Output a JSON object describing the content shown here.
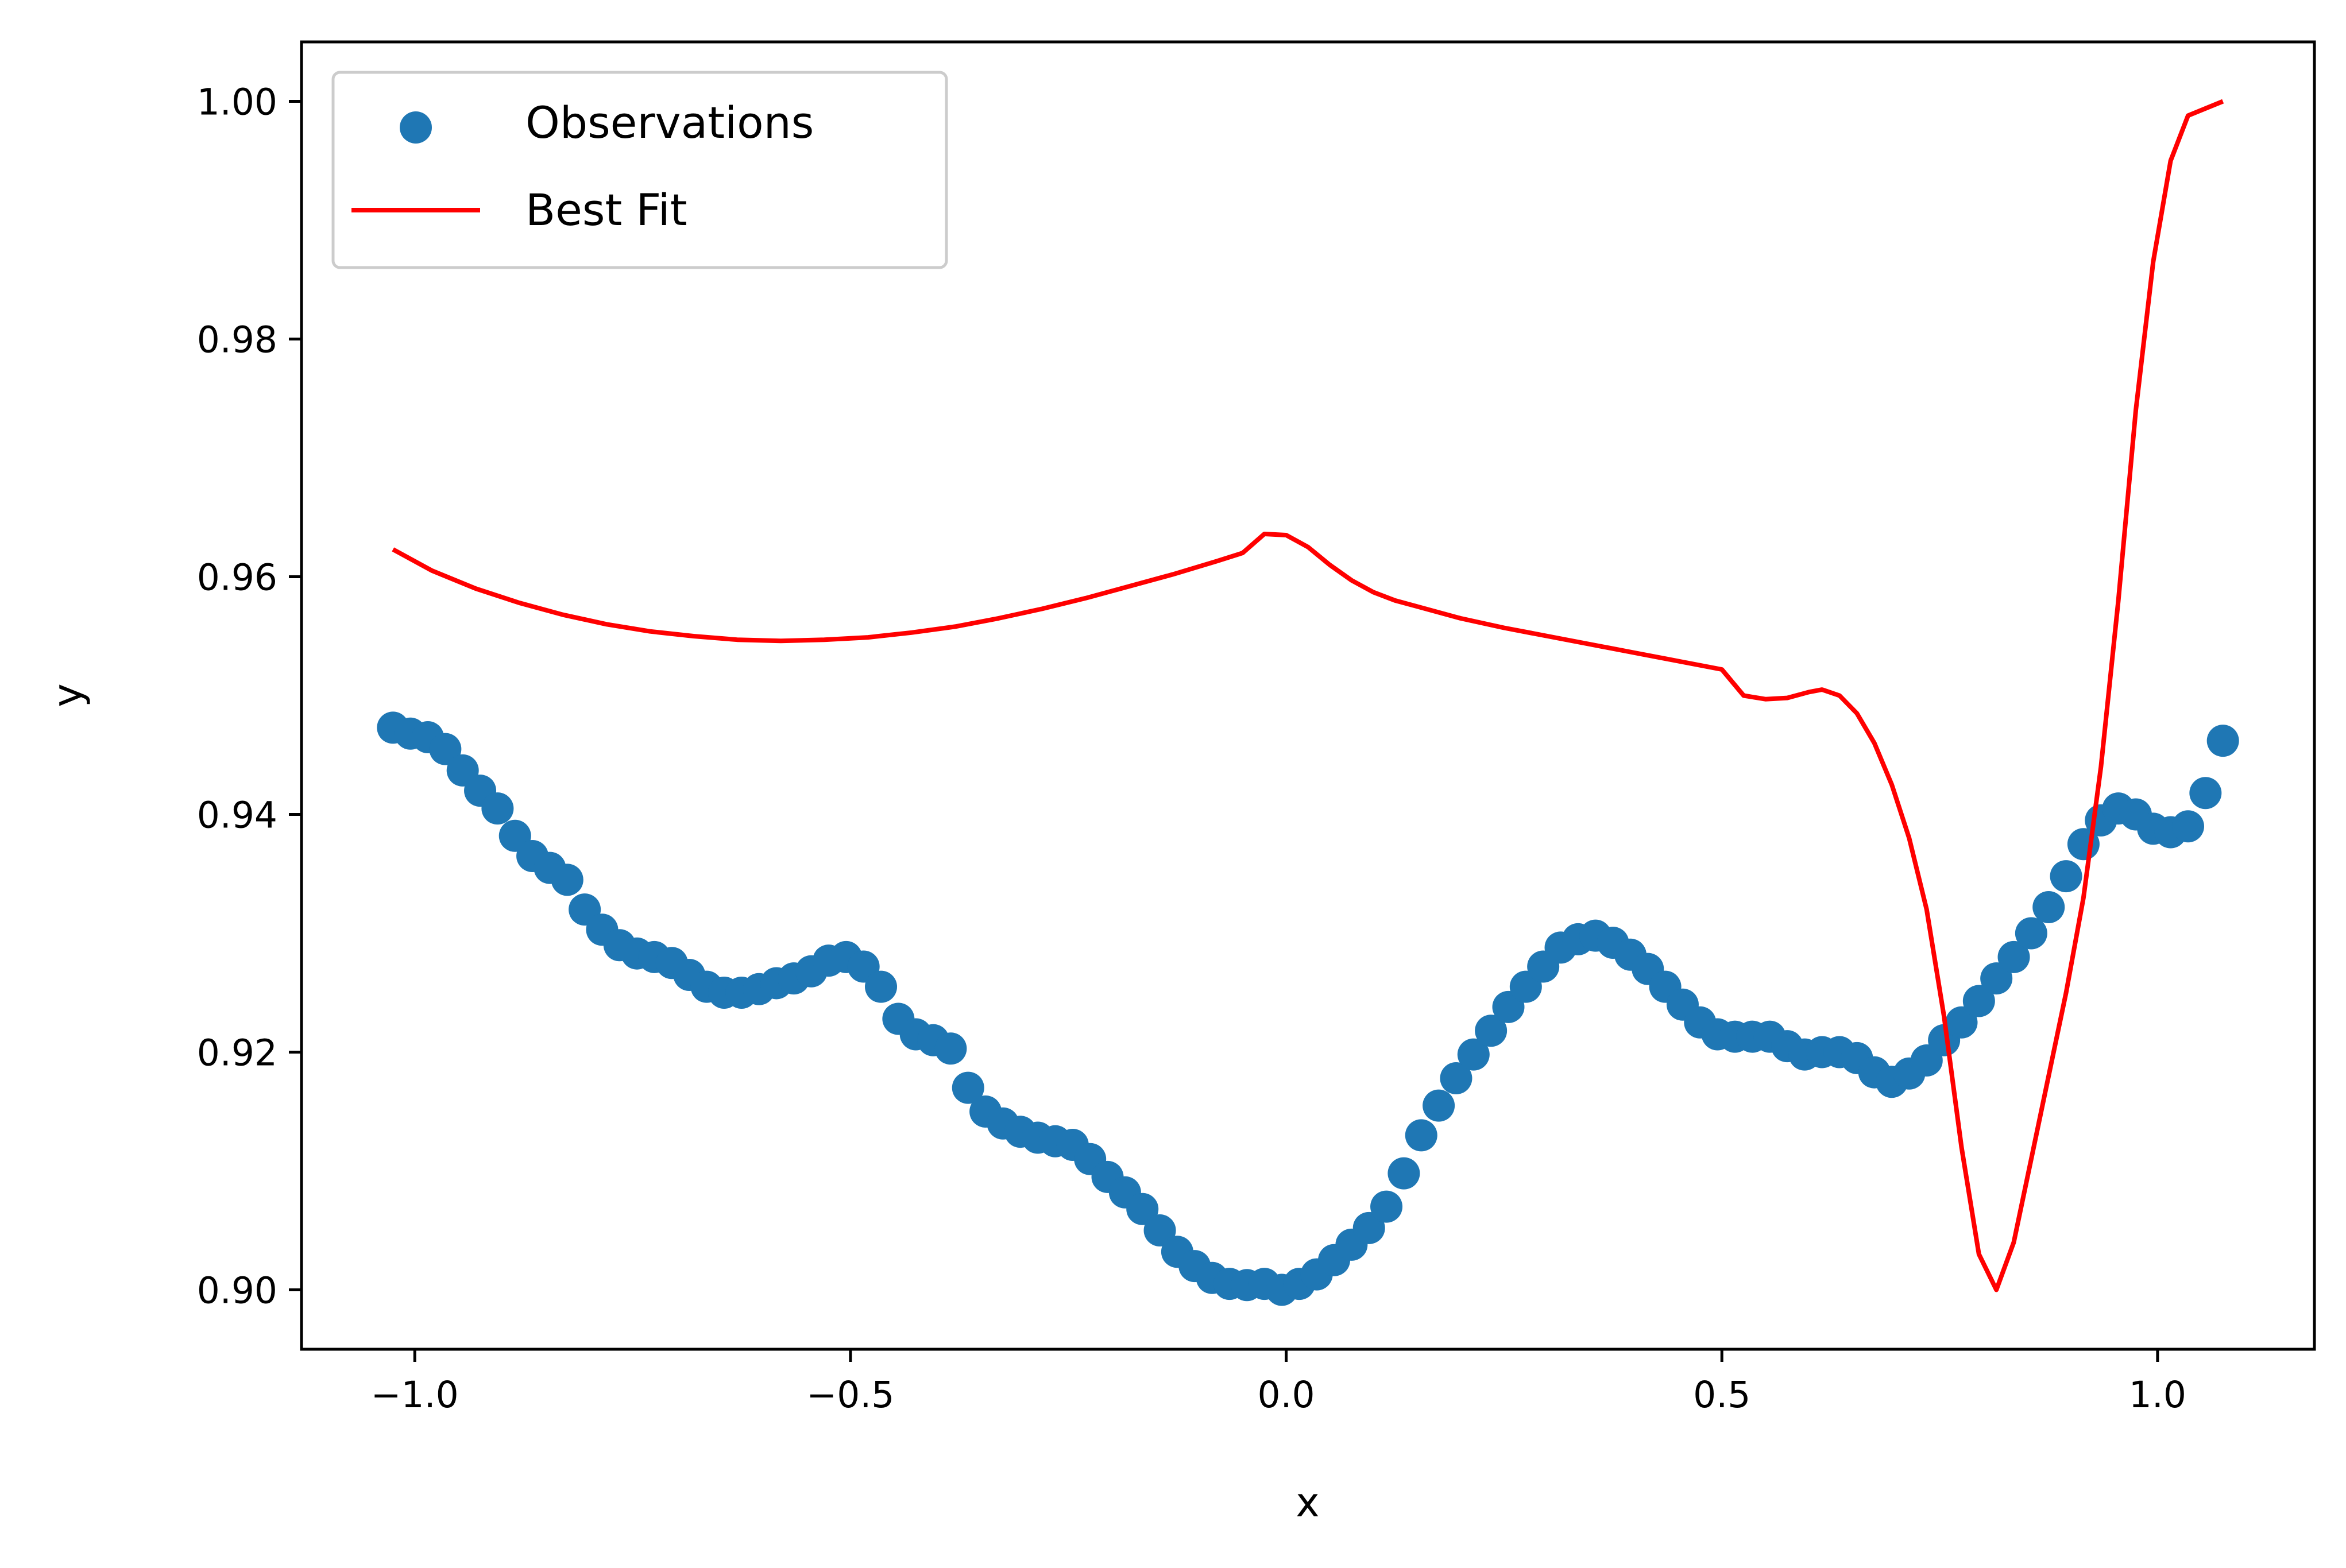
{
  "chart_data": {
    "type": "scatter",
    "title": "",
    "xlabel": "x",
    "ylabel": "y",
    "xlim": [
      -1.13,
      1.18
    ],
    "ylim": [
      0.895,
      1.005
    ],
    "xticks": [
      -1.0,
      -0.5,
      0.0,
      0.5,
      1.0
    ],
    "xtick_labels": [
      "−1.0",
      "−0.5",
      "0.0",
      "0.5",
      "1.0"
    ],
    "yticks": [
      0.9,
      0.92,
      0.94,
      0.96,
      0.98,
      1.0
    ],
    "ytick_labels": [
      "0.90",
      "0.92",
      "0.94",
      "0.96",
      "0.98",
      "1.00"
    ],
    "grid": false,
    "legend_position": "top-left",
    "series": [
      {
        "name": "Observations",
        "kind": "scatter",
        "color": "#1f77b4",
        "points": [
          [
            -1.025,
            0.9473
          ],
          [
            -1.005,
            0.9468
          ],
          [
            -0.985,
            0.9465
          ],
          [
            -0.965,
            0.9455
          ],
          [
            -0.945,
            0.9437
          ],
          [
            -0.925,
            0.942
          ],
          [
            -0.905,
            0.9405
          ],
          [
            -0.885,
            0.9382
          ],
          [
            -0.865,
            0.9365
          ],
          [
            -0.845,
            0.9355
          ],
          [
            -0.825,
            0.9345
          ],
          [
            -0.805,
            0.932
          ],
          [
            -0.785,
            0.9303
          ],
          [
            -0.765,
            0.929
          ],
          [
            -0.745,
            0.9283
          ],
          [
            -0.725,
            0.928
          ],
          [
            -0.705,
            0.9275
          ],
          [
            -0.685,
            0.9265
          ],
          [
            -0.665,
            0.9255
          ],
          [
            -0.645,
            0.925
          ],
          [
            -0.625,
            0.925
          ],
          [
            -0.605,
            0.9253
          ],
          [
            -0.585,
            0.9258
          ],
          [
            -0.565,
            0.9262
          ],
          [
            -0.545,
            0.9268
          ],
          [
            -0.525,
            0.9277
          ],
          [
            -0.505,
            0.928
          ],
          [
            -0.485,
            0.9272
          ],
          [
            -0.465,
            0.9255
          ],
          [
            -0.445,
            0.9228
          ],
          [
            -0.425,
            0.9215
          ],
          [
            -0.405,
            0.921
          ],
          [
            -0.385,
            0.9203
          ],
          [
            -0.365,
            0.917
          ],
          [
            -0.345,
            0.915
          ],
          [
            -0.325,
            0.914
          ],
          [
            -0.305,
            0.9133
          ],
          [
            -0.285,
            0.9128
          ],
          [
            -0.265,
            0.9125
          ],
          [
            -0.245,
            0.9122
          ],
          [
            -0.225,
            0.911
          ],
          [
            -0.205,
            0.9095
          ],
          [
            -0.185,
            0.9082
          ],
          [
            -0.165,
            0.9068
          ],
          [
            -0.145,
            0.905
          ],
          [
            -0.125,
            0.9032
          ],
          [
            -0.105,
            0.902
          ],
          [
            -0.085,
            0.901
          ],
          [
            -0.065,
            0.9005
          ],
          [
            -0.045,
            0.9004
          ],
          [
            -0.025,
            0.9005
          ],
          [
            -0.005,
            0.9
          ],
          [
            0.015,
            0.9005
          ],
          [
            0.035,
            0.9013
          ],
          [
            0.055,
            0.9025
          ],
          [
            0.075,
            0.9038
          ],
          [
            0.095,
            0.9052
          ],
          [
            0.115,
            0.907
          ],
          [
            0.135,
            0.9098
          ],
          [
            0.155,
            0.913
          ],
          [
            0.175,
            0.9155
          ],
          [
            0.195,
            0.9178
          ],
          [
            0.215,
            0.9198
          ],
          [
            0.235,
            0.9218
          ],
          [
            0.255,
            0.9238
          ],
          [
            0.275,
            0.9255
          ],
          [
            0.295,
            0.9272
          ],
          [
            0.315,
            0.9288
          ],
          [
            0.335,
            0.9295
          ],
          [
            0.355,
            0.9298
          ],
          [
            0.375,
            0.9292
          ],
          [
            0.395,
            0.9282
          ],
          [
            0.415,
            0.927
          ],
          [
            0.435,
            0.9255
          ],
          [
            0.455,
            0.924
          ],
          [
            0.475,
            0.9225
          ],
          [
            0.495,
            0.9215
          ],
          [
            0.515,
            0.9213
          ],
          [
            0.535,
            0.9213
          ],
          [
            0.555,
            0.9213
          ],
          [
            0.575,
            0.9205
          ],
          [
            0.595,
            0.9198
          ],
          [
            0.615,
            0.92
          ],
          [
            0.635,
            0.92
          ],
          [
            0.655,
            0.9195
          ],
          [
            0.675,
            0.9183
          ],
          [
            0.695,
            0.9175
          ],
          [
            0.715,
            0.9182
          ],
          [
            0.735,
            0.9193
          ],
          [
            0.755,
            0.921
          ],
          [
            0.775,
            0.9225
          ],
          [
            0.795,
            0.9243
          ],
          [
            0.815,
            0.9262
          ],
          [
            0.835,
            0.928
          ],
          [
            0.855,
            0.93
          ],
          [
            0.875,
            0.9322
          ],
          [
            0.895,
            0.9348
          ],
          [
            0.915,
            0.9375
          ],
          [
            0.935,
            0.9395
          ],
          [
            0.955,
            0.9405
          ],
          [
            0.975,
            0.94
          ],
          [
            0.995,
            0.9388
          ],
          [
            1.015,
            0.9385
          ],
          [
            1.035,
            0.939
          ],
          [
            1.055,
            0.9418
          ],
          [
            1.075,
            0.9462
          ]
        ]
      },
      {
        "name": "Best Fit",
        "kind": "line",
        "color": "#ff0000",
        "points": [
          [
            -1.025,
            0.9623
          ],
          [
            -0.98,
            0.9605
          ],
          [
            -0.93,
            0.959
          ],
          [
            -0.88,
            0.9578
          ],
          [
            -0.83,
            0.9568
          ],
          [
            -0.78,
            0.956
          ],
          [
            -0.73,
            0.9554
          ],
          [
            -0.68,
            0.955
          ],
          [
            -0.63,
            0.9547
          ],
          [
            -0.58,
            0.9546
          ],
          [
            -0.53,
            0.9547
          ],
          [
            -0.48,
            0.9549
          ],
          [
            -0.43,
            0.9553
          ],
          [
            -0.38,
            0.9558
          ],
          [
            -0.33,
            0.9565
          ],
          [
            -0.28,
            0.9573
          ],
          [
            -0.23,
            0.9582
          ],
          [
            -0.18,
            0.9592
          ],
          [
            -0.13,
            0.9602
          ],
          [
            -0.08,
            0.9613
          ],
          [
            -0.05,
            0.962
          ],
          [
            -0.025,
            0.9636
          ],
          [
            0.0,
            0.9635
          ],
          [
            0.025,
            0.9625
          ],
          [
            0.05,
            0.961
          ],
          [
            0.075,
            0.9597
          ],
          [
            0.1,
            0.9587
          ],
          [
            0.125,
            0.958
          ],
          [
            0.15,
            0.9575
          ],
          [
            0.2,
            0.9565
          ],
          [
            0.25,
            0.9557
          ],
          [
            0.3,
            0.955
          ],
          [
            0.35,
            0.9543
          ],
          [
            0.4,
            0.9536
          ],
          [
            0.45,
            0.9529
          ],
          [
            0.5,
            0.9522
          ],
          [
            0.525,
            0.95
          ],
          [
            0.55,
            0.9497
          ],
          [
            0.575,
            0.9498
          ],
          [
            0.6,
            0.9503
          ],
          [
            0.615,
            0.9505
          ],
          [
            0.635,
            0.95
          ],
          [
            0.655,
            0.9485
          ],
          [
            0.675,
            0.946
          ],
          [
            0.695,
            0.9425
          ],
          [
            0.715,
            0.938
          ],
          [
            0.735,
            0.932
          ],
          [
            0.755,
            0.923
          ],
          [
            0.775,
            0.912
          ],
          [
            0.795,
            0.903
          ],
          [
            0.815,
            0.9
          ],
          [
            0.835,
            0.904
          ],
          [
            0.855,
            0.911
          ],
          [
            0.875,
            0.918
          ],
          [
            0.895,
            0.925
          ],
          [
            0.915,
            0.933
          ],
          [
            0.935,
            0.944
          ],
          [
            0.955,
            0.958
          ],
          [
            0.975,
            0.974
          ],
          [
            0.995,
            0.9865
          ],
          [
            1.015,
            0.995
          ],
          [
            1.035,
            0.9988
          ],
          [
            1.075,
            1.0
          ]
        ]
      }
    ]
  }
}
